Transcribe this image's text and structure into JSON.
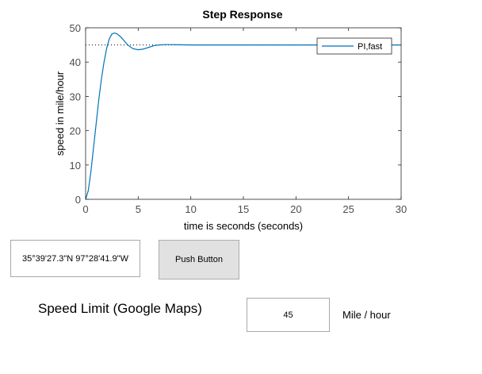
{
  "chart_data": {
    "type": "line",
    "title": "Step Response",
    "xlabel": "time is seconds (seconds)",
    "ylabel": "speed in mile/hour",
    "xlim": [
      0,
      30
    ],
    "ylim": [
      0,
      50
    ],
    "xticks": [
      0,
      5,
      10,
      15,
      20,
      25,
      30
    ],
    "yticks": [
      0,
      10,
      20,
      30,
      40,
      50
    ],
    "grid": false,
    "legend_position": "top-right",
    "reference_line": {
      "y": 45,
      "style": "dotted"
    },
    "series": [
      {
        "name": "PI,fast",
        "color": "#0072bd",
        "x": [
          0,
          0.25,
          0.5,
          0.75,
          1.0,
          1.25,
          1.5,
          1.75,
          2.0,
          2.25,
          2.5,
          2.75,
          3.0,
          3.25,
          3.5,
          3.75,
          4.0,
          4.5,
          5.0,
          5.5,
          6.0,
          6.5,
          7.0,
          7.5,
          8.0,
          9.0,
          10.0,
          12.0,
          15.0,
          20.0,
          25.0,
          30.0
        ],
        "y": [
          0,
          2.5,
          8,
          15,
          22,
          29,
          35,
          40,
          44,
          46.8,
          48.2,
          48.5,
          48.2,
          47.6,
          46.8,
          45.9,
          45.0,
          43.9,
          43.6,
          43.8,
          44.3,
          44.8,
          45.0,
          45.1,
          45.1,
          45.05,
          45.0,
          45.0,
          45.0,
          45.0,
          45.0,
          45.0
        ]
      }
    ]
  },
  "location": {
    "coordinates": "35°39'27.3\"N 97°28'41.9\"W"
  },
  "push_button_label": "Push Button",
  "speed_limit": {
    "label": "Speed Limit (Google Maps)",
    "value": "45",
    "unit": "Mile / hour"
  }
}
